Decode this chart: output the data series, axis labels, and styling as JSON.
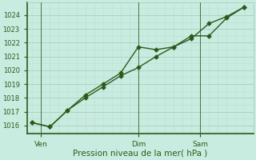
{
  "line1_x": [
    0,
    1,
    2,
    3,
    4,
    5,
    6,
    7,
    8,
    9,
    10,
    11,
    12
  ],
  "line1_y": [
    1016.2,
    1015.9,
    1017.1,
    1018.2,
    1019.0,
    1019.8,
    1021.7,
    1021.5,
    1021.7,
    1022.5,
    1022.5,
    1023.8,
    1024.6
  ],
  "line2_x": [
    0,
    1,
    2,
    3,
    4,
    5,
    6,
    7,
    8,
    9,
    10,
    11,
    12
  ],
  "line2_y": [
    1016.2,
    1015.9,
    1017.1,
    1018.0,
    1018.8,
    1019.6,
    1020.2,
    1021.0,
    1021.7,
    1022.3,
    1023.4,
    1023.9,
    1024.6
  ],
  "line_color": "#2d5a1b",
  "bg_color": "#c8ece0",
  "grid_color_major": "#b0ccbf",
  "grid_color_minor": "#c0ddd0",
  "tick_label_color": "#2d5a1b",
  "xlabel": "Pression niveau de la mer( hPa )",
  "xlabel_color": "#2d5a1b",
  "ylim_min": 1015.4,
  "ylim_max": 1024.9,
  "yticks": [
    1016,
    1017,
    1018,
    1019,
    1020,
    1021,
    1022,
    1023,
    1024
  ],
  "xtick_positions": [
    0.5,
    6.0,
    9.5
  ],
  "xtick_labels": [
    "Ven",
    "Dim",
    "Sam"
  ],
  "vline_positions": [
    0.5,
    6.0,
    9.5
  ],
  "marker": "D",
  "marker_size": 2.5,
  "line_width": 1.0,
  "spine_color": "#2d5a1b",
  "xlabel_fontsize": 7.5,
  "ytick_fontsize": 6,
  "xtick_fontsize": 6.5
}
